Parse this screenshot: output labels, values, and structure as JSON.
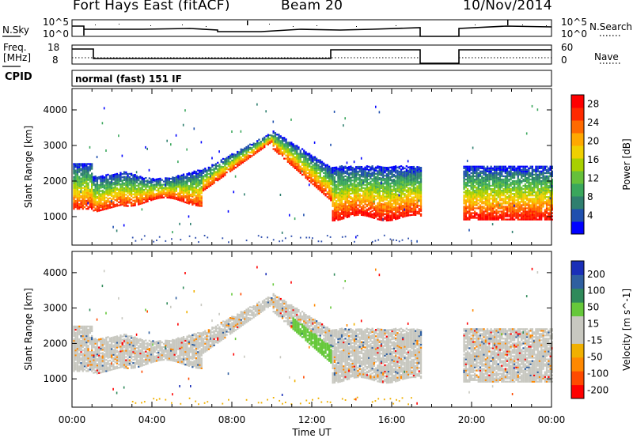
{
  "header": {
    "station": "Fort Hays East (fitACF)",
    "beam": "Beam 20",
    "date": "10/Nov/2014"
  },
  "top_panels": {
    "nsky_label": "N.Sky",
    "nsearch_label": "N.Search",
    "noise_ticks": [
      "10^5",
      "10^0"
    ],
    "freq_label": "Freq.",
    "freq_unit": "[MHz]",
    "freq_ticks": [
      "18",
      "8"
    ],
    "nave_label": "Nave",
    "nave_ticks": [
      "60",
      "0"
    ],
    "cpid_label": "CPID",
    "cpid_value": "normal (fast) 151 IF"
  },
  "chart_data": [
    {
      "type": "heatmap",
      "title": "Power",
      "ylabel": "Slant Range [km]",
      "xlabel": "Time UT",
      "ylim": [
        200,
        4600
      ],
      "xlim": [
        0,
        24
      ],
      "yticks": [
        "1000",
        "2000",
        "3000",
        "4000"
      ],
      "xticks": [
        "00:00",
        "04:00",
        "08:00",
        "12:00",
        "16:00",
        "20:00",
        "00:00"
      ],
      "colorbar": {
        "label": "Power [dB]",
        "ticks": [
          "4",
          "8",
          "12",
          "16",
          "20",
          "24",
          "28"
        ],
        "colors": [
          "#0000ff",
          "#1f4fae",
          "#2f7f6f",
          "#3aa75c",
          "#66c03a",
          "#a8d000",
          "#f0d000",
          "#ffa800",
          "#ff6a00",
          "#ff2a00",
          "#ff0000"
        ]
      },
      "data_gaps": [
        [
          17.5,
          19.5
        ]
      ]
    },
    {
      "type": "heatmap",
      "title": "Velocity",
      "ylabel": "Slant Range [km]",
      "xlabel": "Time UT",
      "ylim": [
        200,
        4600
      ],
      "xlim": [
        0,
        24
      ],
      "yticks": [
        "1000",
        "2000",
        "3000",
        "4000"
      ],
      "xticks": [
        "00:00",
        "04:00",
        "08:00",
        "12:00",
        "16:00",
        "20:00",
        "00:00"
      ],
      "colorbar": {
        "label": "Velocity [m s^-1]",
        "ticks": [
          "200",
          "100",
          "50",
          "15",
          "-15",
          "-50",
          "-100",
          "-200"
        ],
        "colors": [
          "#1a2fb8",
          "#2f5fa0",
          "#2f8a5a",
          "#66c83a",
          "#c8c8c0",
          "#c8c8c0",
          "#f0b000",
          "#ff8800",
          "#ff4a00",
          "#ff0000"
        ]
      },
      "data_gaps": [
        [
          17.5,
          19.5
        ]
      ]
    }
  ]
}
